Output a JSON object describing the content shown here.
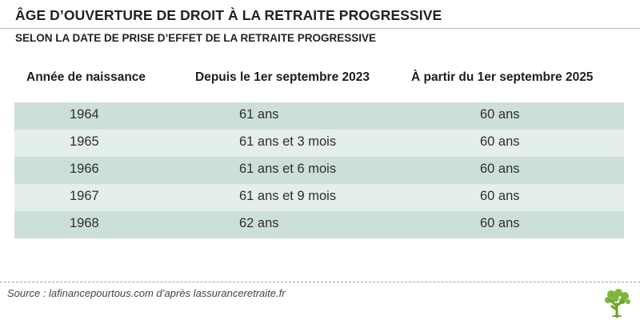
{
  "header": {
    "title": "ÂGE D’OUVERTURE DE DROIT À LA RETRAITE PROGRESSIVE",
    "subtitle": "SELON LA DATE DE PRISE D’EFFET DE LA RETRAITE PROGRESSIVE"
  },
  "table": {
    "columns": [
      "Année de naissance",
      "Depuis le 1er septembre 2023",
      "À partir du 1er septembre 2025"
    ],
    "rows": [
      [
        "1964",
        "61 ans",
        "60 ans"
      ],
      [
        "1965",
        "61 ans et 3 mois",
        "60 ans"
      ],
      [
        "1966",
        "61 ans et 6 mois",
        "60 ans"
      ],
      [
        "1967",
        "61 ans et 9 mois",
        "60 ans"
      ],
      [
        "1968",
        "62 ans",
        "60 ans"
      ]
    ]
  },
  "footer": {
    "source": "Source : lafinancepourtous.com d’après lassuranceretraite.fr",
    "logo_icon": "tree-logo-icon"
  },
  "colors": {
    "row_dark": "#cde0d8",
    "row_light": "#e4eeea",
    "logo_green": "#7fb539"
  }
}
